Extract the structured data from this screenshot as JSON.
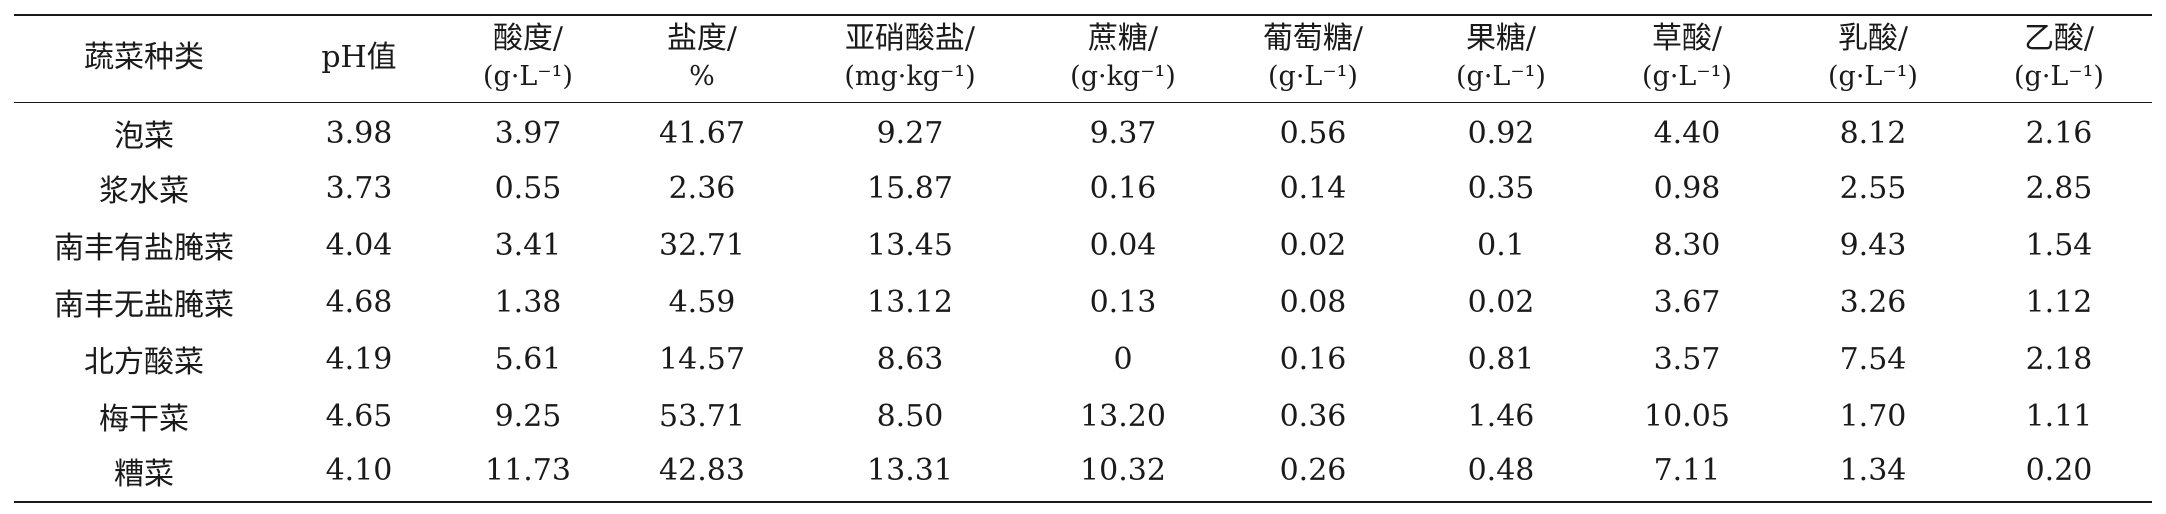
{
  "table": {
    "headers": [
      {
        "line1": "蔬菜种类",
        "line2": ""
      },
      {
        "line1": "pH值",
        "line2": ""
      },
      {
        "line1": "酸度/",
        "line2": "(g·L⁻¹)"
      },
      {
        "line1": "盐度/",
        "line2": "%"
      },
      {
        "line1": "亚硝酸盐/",
        "line2": "(mg·kg⁻¹)"
      },
      {
        "line1": "蔗糖/",
        "line2": "(g·kg⁻¹)"
      },
      {
        "line1": "葡萄糖/",
        "line2": "(g·L⁻¹)"
      },
      {
        "line1": "果糖/",
        "line2": "(g·L⁻¹)"
      },
      {
        "line1": "草酸/",
        "line2": "(g·L⁻¹)"
      },
      {
        "line1": "乳酸/",
        "line2": "(g·L⁻¹)"
      },
      {
        "line1": "乙酸/",
        "line2": "(g·L⁻¹)"
      }
    ],
    "rows": [
      [
        "泡菜",
        "3.98",
        "3.97",
        "41.67",
        "9.27",
        "9.37",
        "0.56",
        "0.92",
        "4.40",
        "8.12",
        "2.16"
      ],
      [
        "浆水菜",
        "3.73",
        "0.55",
        "2.36",
        "15.87",
        "0.16",
        "0.14",
        "0.35",
        "0.98",
        "2.55",
        "2.85"
      ],
      [
        "南丰有盐腌菜",
        "4.04",
        "3.41",
        "32.71",
        "13.45",
        "0.04",
        "0.02",
        "0.1",
        "8.30",
        "9.43",
        "1.54"
      ],
      [
        "南丰无盐腌菜",
        "4.68",
        "1.38",
        "4.59",
        "13.12",
        "0.13",
        "0.08",
        "0.02",
        "3.67",
        "3.26",
        "1.12"
      ],
      [
        "北方酸菜",
        "4.19",
        "5.61",
        "14.57",
        "8.63",
        "0",
        "0.16",
        "0.81",
        "3.57",
        "7.54",
        "2.18"
      ],
      [
        "梅干菜",
        "4.65",
        "9.25",
        "53.71",
        "8.50",
        "13.20",
        "0.36",
        "1.46",
        "10.05",
        "1.70",
        "1.11"
      ],
      [
        "糟菜",
        "4.10",
        "11.73",
        "42.83",
        "13.31",
        "10.32",
        "0.26",
        "0.48",
        "7.11",
        "1.34",
        "0.20"
      ]
    ]
  }
}
